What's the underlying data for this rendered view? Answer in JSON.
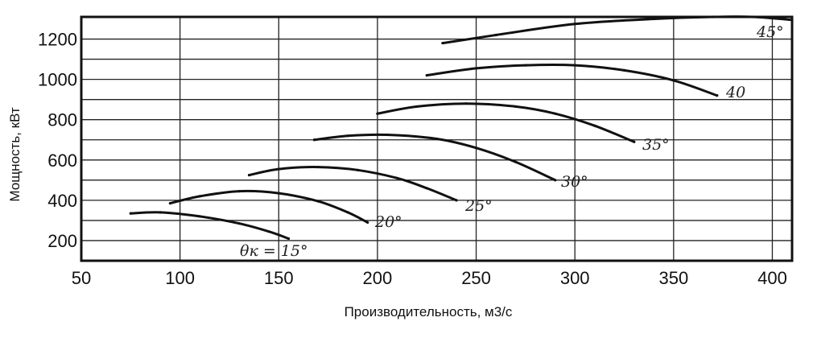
{
  "chart_data": {
    "type": "line",
    "xlabel": "Производительность, м3/с",
    "ylabel": "Мощность, кВт",
    "xlim": [
      50,
      410
    ],
    "ylim": [
      100,
      1310
    ],
    "x_ticks": [
      50,
      100,
      150,
      200,
      250,
      300,
      350,
      400
    ],
    "y_ticks": [
      200,
      400,
      600,
      800,
      1000,
      1200
    ],
    "y_minor_grid": [
      300,
      500,
      700,
      900,
      1100
    ],
    "grid": true,
    "series": [
      {
        "name": "θк = 15°",
        "x": [
          75,
          90,
          110,
          130,
          145,
          155
        ],
        "y": [
          335,
          340,
          320,
          285,
          245,
          210
        ]
      },
      {
        "name": "20°",
        "x": [
          95,
          110,
          130,
          150,
          170,
          185,
          195
        ],
        "y": [
          385,
          420,
          445,
          435,
          395,
          340,
          290
        ]
      },
      {
        "name": "25°",
        "x": [
          135,
          150,
          170,
          190,
          210,
          225,
          240
        ],
        "y": [
          525,
          555,
          565,
          550,
          510,
          460,
          400
        ]
      },
      {
        "name": "30°",
        "x": [
          168,
          185,
          205,
          230,
          250,
          270,
          290
        ],
        "y": [
          700,
          720,
          725,
          705,
          660,
          590,
          500
        ]
      },
      {
        "name": "35°",
        "x": [
          200,
          220,
          245,
          270,
          290,
          310,
          330
        ],
        "y": [
          830,
          865,
          880,
          865,
          830,
          770,
          690
        ]
      },
      {
        "name": "40",
        "x": [
          225,
          250,
          275,
          300,
          325,
          350,
          372
        ],
        "y": [
          1020,
          1055,
          1070,
          1070,
          1045,
          995,
          920
        ]
      },
      {
        "name": "45°",
        "x": [
          233,
          260,
          300,
          340,
          370,
          390,
          410
        ],
        "y": [
          1180,
          1220,
          1275,
          1300,
          1310,
          1310,
          1295
        ]
      }
    ]
  },
  "labels": {
    "c15": "θк = 15°",
    "c20": "20°",
    "c25": "25°",
    "c30": "30°",
    "c35": "35°",
    "c40": "40",
    "c45": "45°"
  }
}
